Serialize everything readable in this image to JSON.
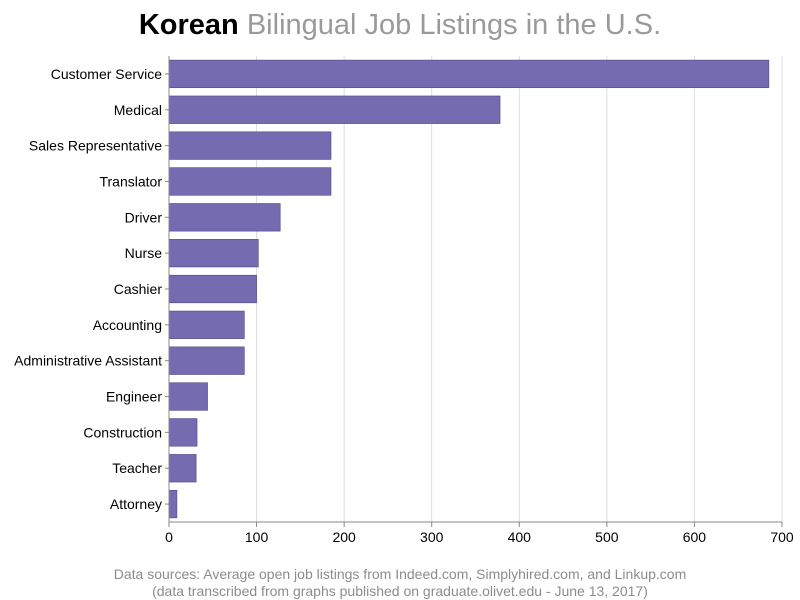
{
  "title": {
    "strong": "Korean",
    "light": "Bilingual Job Listings in the U.S."
  },
  "footnotes": {
    "line1": "Data sources: Average open job listings from Indeed.com, Simplyhired.com, and Linkup.com",
    "line2": "(data transcribed from graphs published on graduate.olivet.edu - June 13, 2017)"
  },
  "colors": {
    "bar": "#756bb1",
    "bar_outline": "#4d4685",
    "grid": "#dddddd",
    "axis": "#888888",
    "text": "#000000"
  },
  "chart_data": {
    "type": "bar",
    "orientation": "horizontal",
    "title": "Korean Bilingual Job Listings in the U.S.",
    "xlabel": "",
    "ylabel": "",
    "xlim": [
      0,
      700
    ],
    "xticks": [
      0,
      100,
      200,
      300,
      400,
      500,
      600,
      700
    ],
    "grid": true,
    "categories": [
      "Customer Service",
      "Medical",
      "Sales Representative",
      "Translator",
      "Driver",
      "Nurse",
      "Cashier",
      "Accounting",
      "Administrative Assistant",
      "Engineer",
      "Construction",
      "Teacher",
      "Attorney"
    ],
    "values": [
      685,
      378,
      185,
      185,
      127,
      102,
      100,
      86,
      86,
      44,
      32,
      31,
      9
    ]
  }
}
